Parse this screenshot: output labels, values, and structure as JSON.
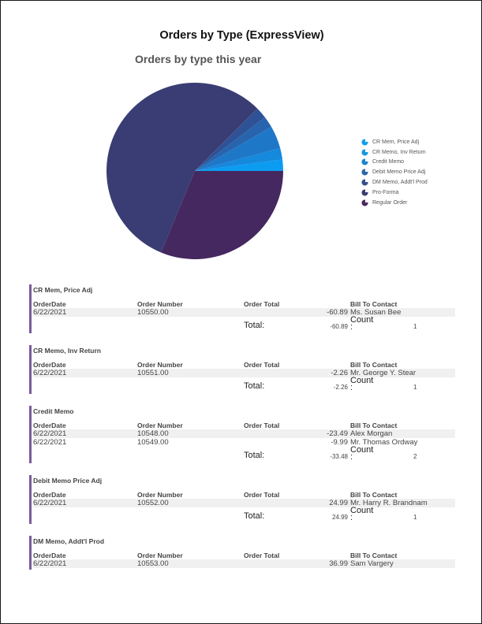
{
  "report": {
    "title": "Orders by Type (ExpressView)"
  },
  "chart_data": {
    "type": "pie",
    "title": "Orders by type this year",
    "legend_position": "right",
    "categories": [
      "CR Mem, Price Adj",
      "CR Memo, Inv Return",
      "Credit Memo",
      "Debit Memo Price Adj",
      "DM Memo, Addt'l Prod",
      "Pro-Forma",
      "Regular Order"
    ],
    "values": [
      1,
      1,
      2,
      1,
      1,
      27,
      15
    ],
    "colors": [
      "#0b9cf2",
      "#1589dc",
      "#1f77c8",
      "#2864ad",
      "#2f5296",
      "#3a3d73",
      "#45285f"
    ],
    "legend_icon_colors": [
      "#14a0ec",
      "#169ae0",
      "#1e83ce",
      "#2c66a8",
      "#35508c",
      "#3d3d72",
      "#4b2a5e"
    ]
  },
  "table_headers": {
    "order_date": "OrderDate",
    "order_number": "Order Number",
    "order_total": "Order Total",
    "bill_to": "Bill To Contact"
  },
  "labels": {
    "total": "Total:",
    "count_line1": "Count",
    "count_line2": ":"
  },
  "groups": [
    {
      "title": "CR Mem, Price Adj",
      "rows": [
        {
          "date": "6/22/2021",
          "number": "10550.00",
          "amount": "-60.89",
          "contact": "Ms. Susan Bee"
        }
      ],
      "total": "-60.89",
      "count": "1"
    },
    {
      "title": "CR Memo, Inv Return",
      "rows": [
        {
          "date": "6/22/2021",
          "number": "10551.00",
          "amount": "-2.26",
          "contact": "Mr. George Y. Stear"
        }
      ],
      "total": "-2.26",
      "count": "1"
    },
    {
      "title": "Credit Memo",
      "rows": [
        {
          "date": "6/22/2021",
          "number": "10548.00",
          "amount": "-23.49",
          "contact": "Alex Morgan"
        },
        {
          "date": "6/22/2021",
          "number": "10549.00",
          "amount": "-9.99",
          "contact": "Mr. Thomas Ordway"
        }
      ],
      "total": "-33.48",
      "count": "2"
    },
    {
      "title": "Debit Memo Price Adj",
      "rows": [
        {
          "date": "6/22/2021",
          "number": "10552.00",
          "amount": "24.99",
          "contact": "Mr. Harry R. Brandnam"
        }
      ],
      "total": "24.99",
      "count": "1"
    },
    {
      "title": "DM Memo, Addt'l Prod",
      "rows": [
        {
          "date": "6/22/2021",
          "number": "10553.00",
          "amount": "36.99",
          "contact": "Sam Vargery"
        }
      ]
    }
  ]
}
